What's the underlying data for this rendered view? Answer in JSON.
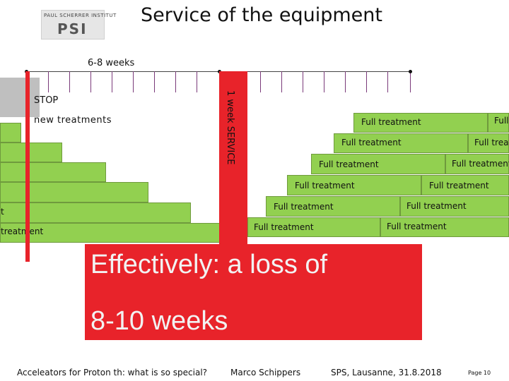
{
  "header": {
    "title": "Service of the equipment",
    "logo_text": "PAUL SCHERRER INSTITUT",
    "logo_mark": "PSI"
  },
  "timeline": {
    "label": "6-8  weeks"
  },
  "left_labels": {
    "stop": "STOP",
    "new_treatments": "new treatments"
  },
  "service": {
    "label": "1 week  SERVICE"
  },
  "left_bars": [
    {
      "label": ""
    },
    {
      "label": ""
    },
    {
      "label": ""
    },
    {
      "label": ""
    },
    {
      "label": "t"
    },
    {
      "label": "treatment"
    }
  ],
  "right_bars": [
    {
      "label": "Full treatment",
      "continuation": "Full"
    },
    {
      "label": "Full treatment",
      "continuation": "Full treat"
    },
    {
      "label": "Full treatment",
      "continuation": "Full treatment"
    },
    {
      "label": "Full treatment",
      "continuation": "Full treatment"
    },
    {
      "label": "Full treatment",
      "continuation": "Full treatment"
    },
    {
      "label": "Full treatment",
      "continuation": "Full treatment"
    }
  ],
  "callout": {
    "line1": "Effectively: a loss of",
    "line2": "8-10 weeks"
  },
  "footer": {
    "talk": "Acceleators for Proton th: what is so special?",
    "author": "Marco Schippers",
    "venue": "SPS, Lausanne, 31.8.2018",
    "page": "Page 10"
  },
  "colors": {
    "accent_red": "#e8232a",
    "bar_green": "#92d050",
    "gray_block": "#bfbfbf"
  }
}
